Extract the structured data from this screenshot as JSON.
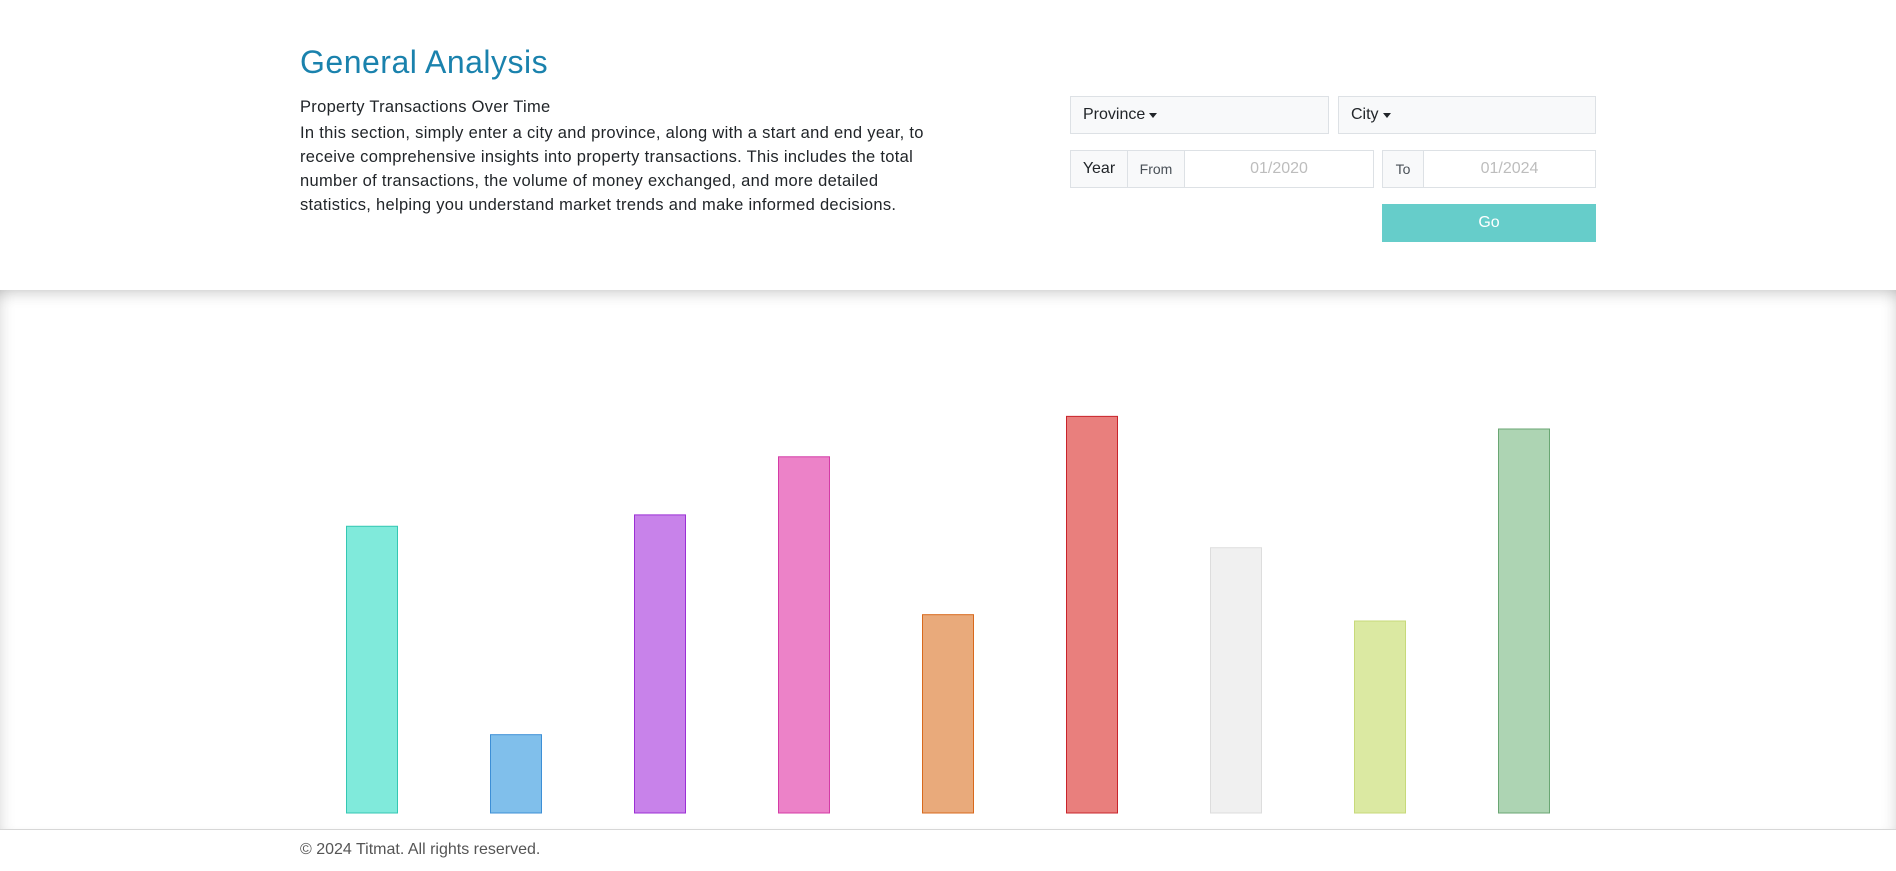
{
  "header": {
    "title": "General Analysis",
    "subtitle": "Property Transactions Over Time",
    "description": "In this section, simply enter a city and province, along with a start and end year, to receive comprehensive insights into property transactions. This includes the total number of transactions, the volume of money exchanged, and more detailed statistics, helping you understand market trends and make informed decisions."
  },
  "filters": {
    "province_label": "Province",
    "city_label": "City",
    "year_label": "Year",
    "from_label": "From",
    "from_placeholder": "01/2020",
    "to_label": "To",
    "to_placeholder": "01/2024",
    "go_label": "Go"
  },
  "chart_data": {
    "type": "bar",
    "categories": [
      "",
      "",
      "",
      "",
      "",
      "",
      "",
      "",
      ""
    ],
    "values": [
      227,
      62,
      236,
      282,
      157,
      314,
      210,
      152,
      304
    ],
    "ylim": [
      0,
      380
    ],
    "colors": [
      {
        "fill": "#80eadb",
        "stroke": "#34c7b3"
      },
      {
        "fill": "#80bfeb",
        "stroke": "#3d8fd6"
      },
      {
        "fill": "#c882ea",
        "stroke": "#9b2fd4"
      },
      {
        "fill": "#ec82c8",
        "stroke": "#d43ba6"
      },
      {
        "fill": "#e9aa7b",
        "stroke": "#d8691c"
      },
      {
        "fill": "#e97f7d",
        "stroke": "#c8242b"
      },
      {
        "fill": "#f0f0f0",
        "stroke": "#dddddd"
      },
      {
        "fill": "#dbe9a2",
        "stroke": "#c7d97a"
      },
      {
        "fill": "#add4b3",
        "stroke": "#6aa673"
      }
    ],
    "grid": false
  },
  "footer": {
    "copyright": "© 2024 Titmat. All rights reserved."
  }
}
